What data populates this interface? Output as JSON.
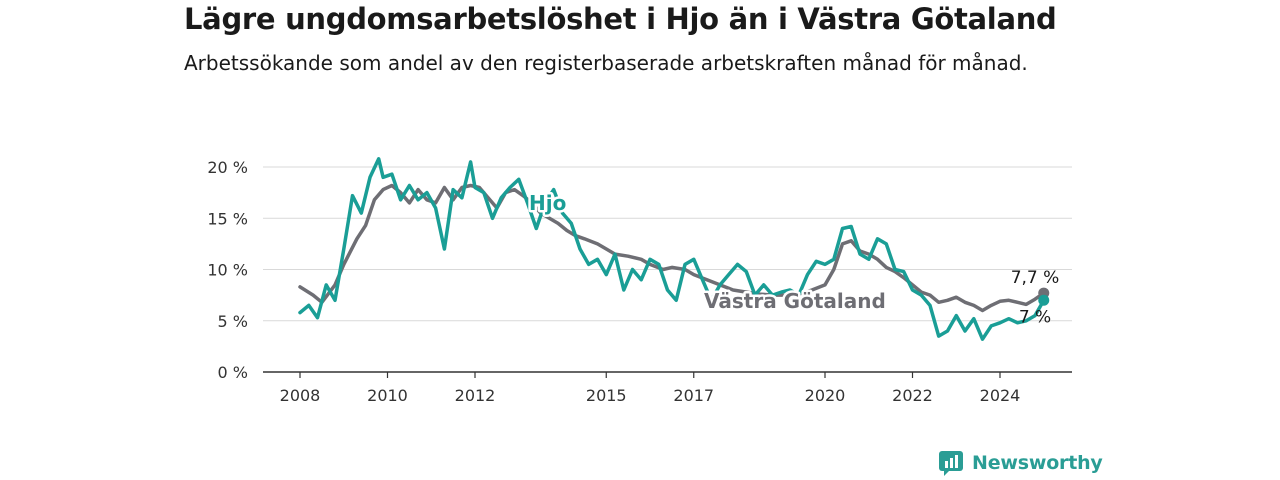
{
  "title": "Lägre ungdomsarbetslöshet i Hjo än i Västra Götaland",
  "subtitle": "Arbetssökande som andel av den registerbaserade arbetskraften månad för månad.",
  "brand": "Newsworthy",
  "colors": {
    "hjo": "#1a9e96",
    "vg": "#6e6e74",
    "grid": "#d9d9d9",
    "axis": "#333333",
    "brand": "#2a9d95"
  },
  "chart_data": {
    "type": "line",
    "ylim": [
      0,
      20
    ],
    "yticks": [
      0,
      5,
      10,
      15,
      20
    ],
    "ytick_labels": [
      "0 %",
      "5 %",
      "10 %",
      "15 %",
      "20 %"
    ],
    "xlim": [
      2008,
      2025.3
    ],
    "xticks": [
      2008,
      2010,
      2012,
      2015,
      2017,
      2020,
      2022,
      2024
    ],
    "xtick_labels": [
      "2008",
      "2010",
      "2012",
      "2015",
      "2017",
      "2020",
      "2022",
      "2024"
    ],
    "series": [
      {
        "name": "Västra Götaland",
        "end_label": "7,7 %",
        "x": [
          2008.0,
          2008.3,
          2008.5,
          2008.8,
          2009.0,
          2009.3,
          2009.5,
          2009.7,
          2009.9,
          2010.1,
          2010.3,
          2010.5,
          2010.7,
          2010.9,
          2011.1,
          2011.3,
          2011.5,
          2011.7,
          2011.9,
          2012.1,
          2012.3,
          2012.5,
          2012.7,
          2012.9,
          2013.1,
          2013.3,
          2013.5,
          2013.7,
          2013.9,
          2014.1,
          2014.3,
          2014.5,
          2014.8,
          2015.0,
          2015.2,
          2015.5,
          2015.8,
          2016.0,
          2016.3,
          2016.5,
          2016.8,
          2017.0,
          2017.3,
          2017.6,
          2017.9,
          2018.2,
          2018.5,
          2018.8,
          2019.1,
          2019.4,
          2019.7,
          2020.0,
          2020.2,
          2020.4,
          2020.6,
          2020.8,
          2021.0,
          2021.2,
          2021.4,
          2021.6,
          2021.8,
          2022.0,
          2022.2,
          2022.4,
          2022.6,
          2022.8,
          2023.0,
          2023.2,
          2023.4,
          2023.6,
          2023.8,
          2024.0,
          2024.2,
          2024.4,
          2024.6,
          2024.8,
          2025.0
        ],
        "values": [
          8.3,
          7.5,
          6.8,
          8.5,
          10.5,
          13.0,
          14.3,
          16.8,
          17.8,
          18.2,
          17.5,
          16.5,
          17.8,
          16.8,
          16.5,
          18.0,
          16.8,
          18.0,
          18.2,
          18.0,
          17.0,
          16.0,
          17.5,
          17.8,
          17.2,
          16.5,
          15.5,
          15.0,
          14.5,
          13.8,
          13.3,
          13.0,
          12.5,
          12.0,
          11.5,
          11.3,
          11.0,
          10.5,
          10.0,
          10.2,
          10.0,
          9.5,
          9.0,
          8.5,
          8.0,
          7.8,
          7.6,
          7.5,
          7.5,
          7.6,
          8.0,
          8.5,
          10.0,
          12.5,
          12.8,
          11.8,
          11.5,
          11.0,
          10.2,
          9.8,
          9.2,
          8.5,
          7.8,
          7.5,
          6.8,
          7.0,
          7.3,
          6.8,
          6.5,
          6.0,
          6.5,
          6.9,
          7.0,
          6.8,
          6.6,
          7.1,
          7.7
        ]
      },
      {
        "name": "Hjo",
        "end_label": "7 %",
        "x": [
          2008.0,
          2008.2,
          2008.4,
          2008.6,
          2008.8,
          2009.0,
          2009.2,
          2009.4,
          2009.6,
          2009.8,
          2009.9,
          2010.1,
          2010.3,
          2010.5,
          2010.7,
          2010.9,
          2011.1,
          2011.3,
          2011.5,
          2011.7,
          2011.9,
          2012.0,
          2012.2,
          2012.4,
          2012.6,
          2012.8,
          2013.0,
          2013.2,
          2013.4,
          2013.6,
          2013.8,
          2014.0,
          2014.2,
          2014.4,
          2014.6,
          2014.8,
          2015.0,
          2015.2,
          2015.4,
          2015.6,
          2015.8,
          2016.0,
          2016.2,
          2016.4,
          2016.6,
          2016.8,
          2017.0,
          2017.2,
          2017.4,
          2017.6,
          2017.8,
          2018.0,
          2018.2,
          2018.4,
          2018.6,
          2018.8,
          2019.0,
          2019.2,
          2019.4,
          2019.6,
          2019.8,
          2020.0,
          2020.2,
          2020.4,
          2020.6,
          2020.8,
          2021.0,
          2021.2,
          2021.4,
          2021.6,
          2021.8,
          2022.0,
          2022.2,
          2022.4,
          2022.6,
          2022.8,
          2023.0,
          2023.2,
          2023.4,
          2023.6,
          2023.8,
          2024.0,
          2024.2,
          2024.4,
          2024.6,
          2024.8,
          2025.0
        ],
        "values": [
          5.8,
          6.5,
          5.3,
          8.5,
          7.0,
          12.0,
          17.2,
          15.5,
          19.0,
          20.8,
          19.0,
          19.3,
          16.8,
          18.2,
          16.8,
          17.5,
          16.0,
          12.0,
          17.8,
          17.0,
          20.5,
          18.0,
          17.5,
          15.0,
          17.0,
          18.0,
          18.8,
          16.5,
          14.0,
          16.5,
          17.8,
          15.5,
          14.5,
          12.0,
          10.5,
          11.0,
          9.5,
          11.5,
          8.0,
          10.0,
          9.0,
          11.0,
          10.5,
          8.0,
          7.0,
          10.5,
          11.0,
          9.0,
          7.0,
          8.5,
          9.5,
          10.5,
          9.8,
          7.5,
          8.5,
          7.5,
          7.8,
          8.0,
          7.5,
          9.5,
          10.8,
          10.5,
          11.0,
          14.0,
          14.2,
          11.5,
          11.0,
          13.0,
          12.5,
          10.0,
          9.8,
          8.0,
          7.5,
          6.5,
          3.5,
          4.0,
          5.5,
          4.0,
          5.2,
          3.2,
          4.5,
          4.8,
          5.2,
          4.8,
          5.0,
          5.5,
          7.0
        ]
      }
    ],
    "annotations": [
      "Hjo",
      "Västra Götaland"
    ]
  }
}
